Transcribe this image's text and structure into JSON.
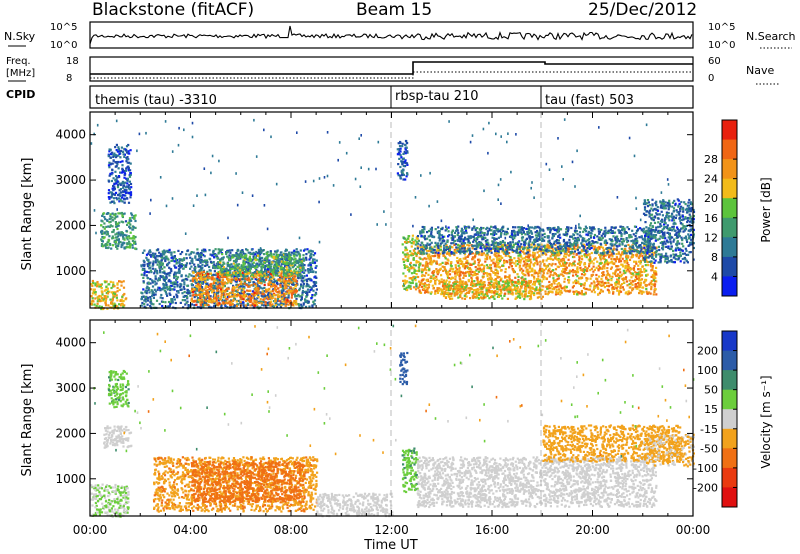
{
  "header": {
    "station": "Blackstone (fitACF)",
    "beam": "Beam 15",
    "date": "25/Dec/2012"
  },
  "noise_panel": {
    "left_label": "N.Sky",
    "right_label": "N.Search",
    "left_ticks": [
      "10^5",
      "10^0"
    ],
    "right_ticks": [
      "10^5",
      "10^0"
    ]
  },
  "freq_panel": {
    "left_label_1": "Freq.",
    "left_label_2": "[MHz]",
    "right_label": "Nave",
    "left_ticks": [
      "18",
      "8"
    ],
    "right_ticks": [
      "60",
      "0"
    ]
  },
  "cpid_panel": {
    "label": "CPID",
    "programs": [
      {
        "name": "themis (tau) -3310",
        "start_hour": 0
      },
      {
        "name": "rbsp-tau 210",
        "start_hour": 12
      },
      {
        "name": "tau (fast) 503",
        "start_hour": 18
      }
    ]
  },
  "chart_data": [
    {
      "type": "heatmap",
      "title": "",
      "ylabel": "Slant Range [km]",
      "xlabel": "",
      "xlim": [
        0,
        24
      ],
      "ylim": [
        180,
        4500
      ],
      "yticks": [
        1000,
        2000,
        3000,
        4000
      ],
      "colorbar": {
        "label": "Power [dB]",
        "range": [
          0,
          32
        ],
        "ticks": [
          "4",
          "8",
          "12",
          "16",
          "20",
          "24",
          "28"
        ],
        "colors": [
          "#0a1ef0",
          "#1e4aa8",
          "#2e7a96",
          "#3f9a6e",
          "#5cc43c",
          "#f2bb1a",
          "#f29318",
          "#f06614",
          "#e8200e"
        ]
      },
      "regions": [
        {
          "t": [
            0.0,
            1.4
          ],
          "r": [
            180,
            800
          ],
          "value": 20
        },
        {
          "t": [
            0.4,
            1.8
          ],
          "r": [
            1500,
            2300
          ],
          "value": 12
        },
        {
          "t": [
            0.7,
            1.6
          ],
          "r": [
            2500,
            3800
          ],
          "value": 6
        },
        {
          "t": [
            2.0,
            9.0
          ],
          "r": [
            200,
            1500
          ],
          "value": 8
        },
        {
          "t": [
            4.0,
            8.2
          ],
          "r": [
            250,
            1000
          ],
          "value": 24
        },
        {
          "t": [
            5.0,
            8.5
          ],
          "r": [
            900,
            1400
          ],
          "value": 14
        },
        {
          "t": [
            12.2,
            12.6
          ],
          "r": [
            3000,
            3900
          ],
          "value": 6
        },
        {
          "t": [
            12.4,
            13.0
          ],
          "r": [
            600,
            1800
          ],
          "value": 18
        },
        {
          "t": [
            13.0,
            22.5
          ],
          "r": [
            500,
            1600
          ],
          "value": 22
        },
        {
          "t": [
            13.0,
            22.5
          ],
          "r": [
            1400,
            2000
          ],
          "value": 8
        },
        {
          "t": [
            14.0,
            18.0
          ],
          "r": [
            400,
            800
          ],
          "value": 20
        },
        {
          "t": [
            22.0,
            24.0
          ],
          "r": [
            1200,
            2600
          ],
          "value": 8
        }
      ]
    },
    {
      "type": "heatmap",
      "title": "",
      "ylabel": "Slant Range [km]",
      "xlabel": "Time UT",
      "xlim": [
        0,
        24
      ],
      "ylim": [
        180,
        4500
      ],
      "xticks": [
        "00:00",
        "04:00",
        "08:00",
        "12:00",
        "16:00",
        "20:00",
        "00:00"
      ],
      "yticks": [
        1000,
        2000,
        3000,
        4000
      ],
      "colorbar": {
        "label": "Velocity [m s⁻¹]",
        "ticks": [
          "200",
          "100",
          "50",
          "15",
          "-15",
          "-50",
          "-100",
          "-200"
        ],
        "colors": [
          "#1838c8",
          "#2c5ca8",
          "#3e8c6c",
          "#6cce3c",
          "#cfcfcf",
          "#f2a21c",
          "#f07014",
          "#ea3a10",
          "#e01010"
        ]
      },
      "regions": [
        {
          "t": [
            0.0,
            1.5
          ],
          "r": [
            180,
            900
          ],
          "value": 15
        },
        {
          "t": [
            0.5,
            1.6
          ],
          "r": [
            1700,
            2200
          ],
          "value": 0
        },
        {
          "t": [
            0.7,
            1.5
          ],
          "r": [
            2600,
            3400
          ],
          "value": 40
        },
        {
          "t": [
            2.5,
            9.0
          ],
          "r": [
            300,
            1500
          ],
          "value": -40
        },
        {
          "t": [
            4.0,
            8.5
          ],
          "r": [
            500,
            1400
          ],
          "value": -80
        },
        {
          "t": [
            9.0,
            12.0
          ],
          "r": [
            200,
            700
          ],
          "value": 0
        },
        {
          "t": [
            12.3,
            12.6
          ],
          "r": [
            3100,
            3800
          ],
          "value": 150
        },
        {
          "t": [
            12.4,
            13.0
          ],
          "r": [
            700,
            1700
          ],
          "value": 40
        },
        {
          "t": [
            13.0,
            22.5
          ],
          "r": [
            900,
            1500
          ],
          "value": 0
        },
        {
          "t": [
            13.0,
            22.5
          ],
          "r": [
            400,
            900
          ],
          "value": 0
        },
        {
          "t": [
            18.0,
            23.5
          ],
          "r": [
            1400,
            2200
          ],
          "value": -30
        },
        {
          "t": [
            22.0,
            24.0
          ],
          "r": [
            1300,
            2000
          ],
          "value": -20
        }
      ]
    }
  ]
}
